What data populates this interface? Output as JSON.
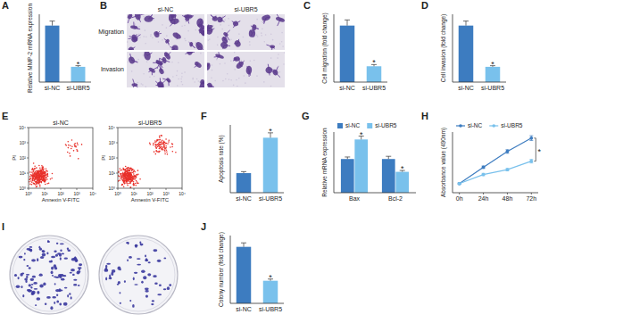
{
  "chart_data": [
    {
      "type": "bar",
      "title": "A",
      "y_label": "Relative MMP-2 mRNA expression",
      "categories": [
        "si-NC",
        "si-UBR5"
      ],
      "values": [
        1.0,
        0.27
      ],
      "errors": [
        0.08,
        0.02
      ],
      "colors": [
        "#3d7cc0",
        "#79c1ec"
      ],
      "ylim": [
        0,
        1.2
      ],
      "tick_labels": "x",
      "annotations": [
        {
          "text": "*",
          "index": 1
        }
      ]
    },
    {
      "type": "bar",
      "title": "C",
      "y_label": "Cell migration (fold change)",
      "categories": [
        "si-NC",
        "si-UBR5"
      ],
      "values": [
        1.0,
        0.28
      ],
      "errors": [
        0.1,
        0.03
      ],
      "colors": [
        "#3d7cc0",
        "#79c1ec"
      ],
      "ylim": [
        0,
        1.2
      ],
      "tick_labels": "x",
      "annotations": [
        {
          "text": "*",
          "index": 1
        }
      ]
    },
    {
      "type": "bar",
      "title": "D",
      "y_label": "Cell invasion (fold change)",
      "categories": [
        "si-NC",
        "si-UBR5"
      ],
      "values": [
        1.0,
        0.27
      ],
      "errors": [
        0.08,
        0.02
      ],
      "colors": [
        "#3d7cc0",
        "#79c1ec"
      ],
      "ylim": [
        0,
        1.2
      ],
      "tick_labels": "x",
      "annotations": [
        {
          "text": "*",
          "index": 1
        }
      ]
    },
    {
      "type": "bar",
      "title": "F",
      "y_label": "Apoptosis rate (%)",
      "categories": [
        "si-NC",
        "si-UBR5"
      ],
      "values": [
        5.2,
        14.6
      ],
      "errors": [
        0.4,
        1.3
      ],
      "colors": [
        "#3d7cc0",
        "#79c1ec"
      ],
      "ylim": [
        0,
        18
      ],
      "tick_labels": "x",
      "annotations": [
        {
          "text": "*",
          "index": 1
        }
      ]
    },
    {
      "type": "bar",
      "title": "G",
      "y_label": "Relative mRNA expression",
      "categories": [
        "Bax",
        "Bcl-2"
      ],
      "series": [
        {
          "name": "si-NC",
          "color": "#3d7cc0",
          "values": [
            1.0,
            1.0
          ],
          "errors": [
            0.06,
            0.08
          ]
        },
        {
          "name": "si-UBR5",
          "color": "#79c1ec",
          "values": [
            1.58,
            0.62
          ],
          "errors": [
            0.1,
            0.04
          ]
        }
      ],
      "ylim": [
        0,
        1.8
      ],
      "tick_labels": "x",
      "legend": "top",
      "annotations": [
        {
          "text": "*",
          "series": 1,
          "index": 0
        },
        {
          "text": "*",
          "series": 1,
          "index": 1
        }
      ]
    },
    {
      "type": "line",
      "title": "H",
      "y_label": "Absorbance value (490nm)",
      "categories": [
        "0h",
        "24h",
        "48h",
        "72h"
      ],
      "series": [
        {
          "name": "si-NC",
          "color": "#3d7cc0",
          "marker": "circle",
          "values": [
            0.15,
            0.42,
            0.68,
            0.9
          ],
          "errors": [
            0.01,
            0.02,
            0.03,
            0.04
          ]
        },
        {
          "name": "si-UBR5",
          "color": "#79c1ec",
          "marker": "circle",
          "values": [
            0.15,
            0.3,
            0.38,
            0.52
          ],
          "errors": [
            0.01,
            0.02,
            0.02,
            0.03
          ]
        }
      ],
      "ylim": [
        0,
        1.0
      ],
      "tick_labels": "x",
      "legend": "top",
      "annotations": [
        {
          "text": "*",
          "index": 3
        }
      ]
    },
    {
      "type": "bar",
      "title": "J",
      "y_label": "Colony number (fold change)",
      "categories": [
        "si-NC",
        "si-UBR5"
      ],
      "values": [
        1.0,
        0.4
      ],
      "errors": [
        0.07,
        0.03
      ],
      "colors": [
        "#3d7cc0",
        "#79c1ec"
      ],
      "ylim": [
        0,
        1.2
      ],
      "tick_labels": "x",
      "annotations": [
        {
          "text": "*",
          "index": 1
        }
      ]
    }
  ],
  "images": [
    {
      "title": "B",
      "columns": [
        "si-NC",
        "si-UBR5"
      ],
      "rows": [
        "Migration",
        "Invasion"
      ]
    },
    {
      "title": "E",
      "panels": [
        "si-NC",
        "si-UBR5"
      ],
      "x_label": "Annexin V-FITC",
      "y_label": "PI",
      "ticks": [
        "10⁰",
        "10¹",
        "10²",
        "10³",
        "10⁴"
      ]
    },
    {
      "title": "I"
    }
  ]
}
